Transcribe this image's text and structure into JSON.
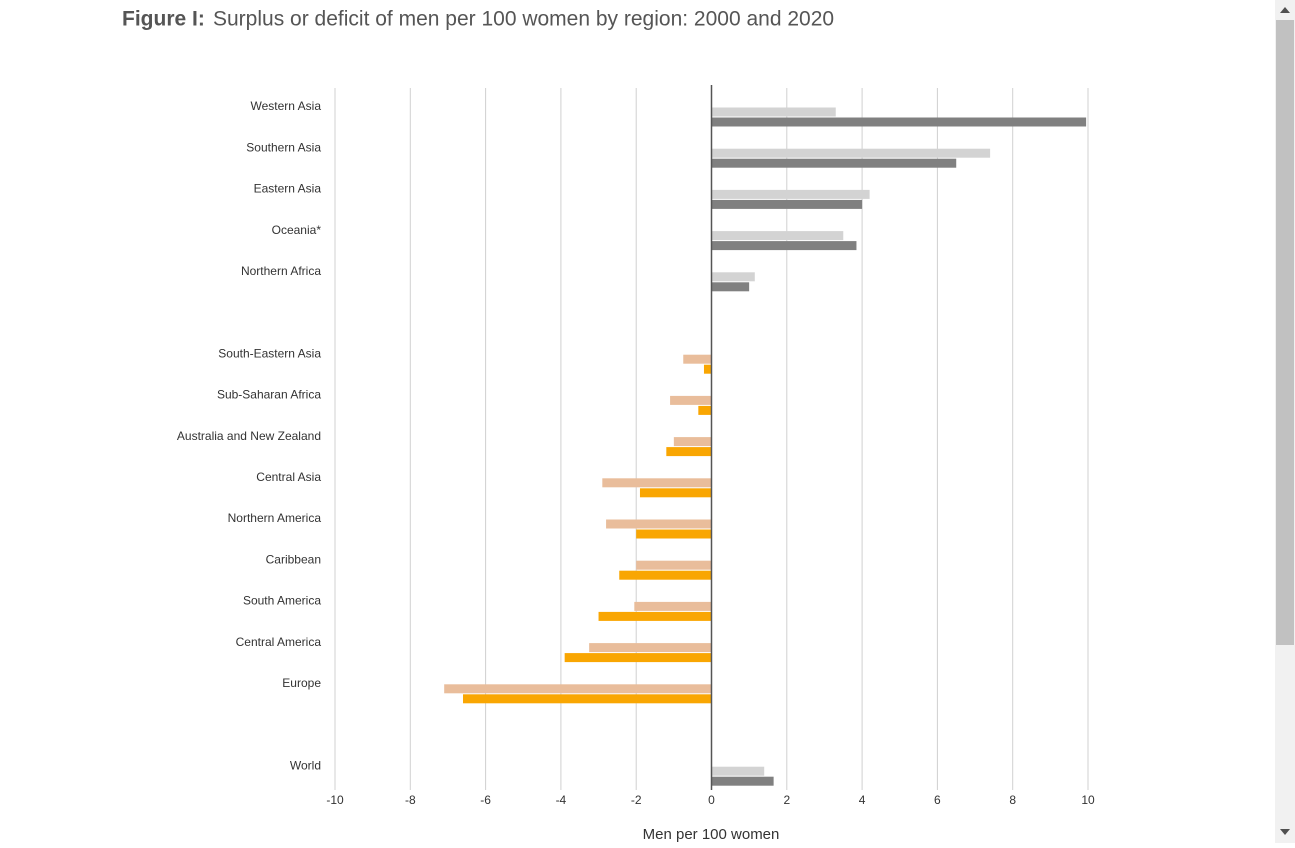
{
  "chart_data": {
    "type": "hbar",
    "title_prefix": "Figure I:",
    "title": "Surplus or deficit of men per 100 women by region: 2000 and 2020",
    "xlabel": "Men per 100 women",
    "categories": [
      "Western Asia",
      "Southern Asia",
      "Eastern Asia",
      "Oceania*",
      "Northern Africa",
      null,
      "South-Eastern Asia",
      "Sub-Saharan Africa",
      "Australia and New Zealand",
      "Central Asia",
      "Northern America",
      "Caribbean",
      "South America",
      "Central America",
      "Europe",
      null,
      "World"
    ],
    "series": [
      {
        "values": [
          3.3,
          7.4,
          4.2,
          3.5,
          1.15,
          null,
          -0.75,
          -1.1,
          -1.0,
          -2.9,
          -2.8,
          -2.0,
          -2.05,
          -3.25,
          -7.1,
          null,
          1.4
        ],
        "colors": [
          "#d3d3d3",
          "#d3d3d3",
          "#d3d3d3",
          "#d3d3d3",
          "#d3d3d3",
          null,
          "#e9bd9b",
          "#e9bd9b",
          "#e9bd9b",
          "#e9bd9b",
          "#e9bd9b",
          "#e9bd9b",
          "#e9bd9b",
          "#e9bd9b",
          "#e9bd9b",
          null,
          "#d3d3d3"
        ]
      },
      {
        "values": [
          9.95,
          6.5,
          4.0,
          3.85,
          1.0,
          null,
          -0.2,
          -0.35,
          -1.2,
          -1.9,
          -2.0,
          -2.45,
          -3.0,
          -3.9,
          -6.6,
          null,
          1.65
        ],
        "colors": [
          "#808080",
          "#808080",
          "#808080",
          "#808080",
          "#808080",
          null,
          "#f9a602",
          "#f9a602",
          "#f9a602",
          "#f9a602",
          "#f9a602",
          "#f9a602",
          "#f9a602",
          "#f9a602",
          "#f9a602",
          null,
          "#808080"
        ]
      }
    ],
    "xlim": [
      -10,
      10
    ],
    "xticks": [
      -10,
      -8,
      -6,
      -4,
      -2,
      0,
      2,
      4,
      6,
      8,
      10
    ],
    "grid": true
  }
}
